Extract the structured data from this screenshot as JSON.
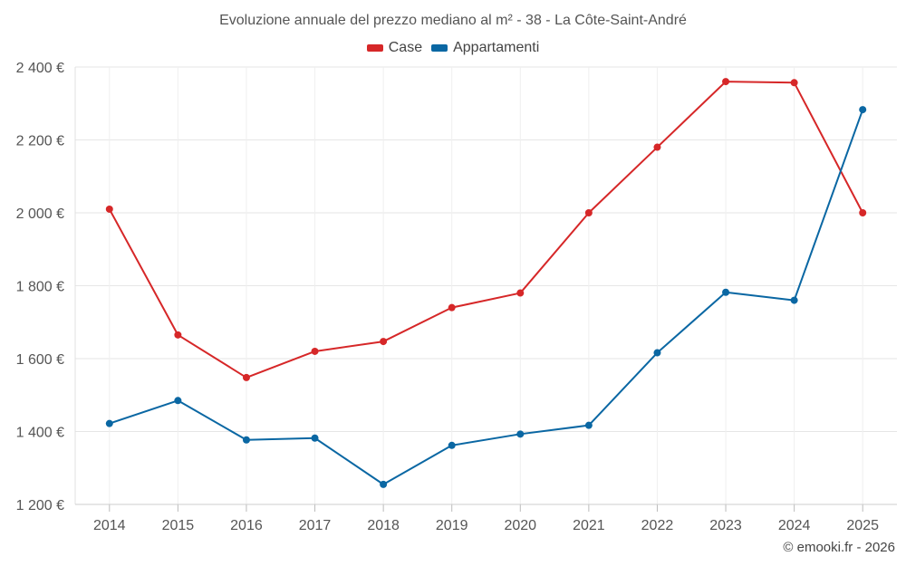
{
  "chart_data": {
    "type": "line",
    "title": "Evoluzione annuale del prezzo mediano al m² - 38 - La Côte-Saint-André",
    "xlabel": "",
    "ylabel": "",
    "categories": [
      "2014",
      "2015",
      "2016",
      "2017",
      "2018",
      "2019",
      "2020",
      "2021",
      "2022",
      "2023",
      "2024",
      "2025"
    ],
    "series": [
      {
        "name": "Case",
        "color": "#d62728",
        "values": [
          2010,
          1665,
          1548,
          1620,
          1647,
          1740,
          1780,
          2000,
          2180,
          2360,
          2357,
          2000
        ]
      },
      {
        "name": "Appartamenti",
        "color": "#0a67a3",
        "values": [
          1422,
          1485,
          1377,
          1382,
          1255,
          1362,
          1393,
          1417,
          1616,
          1782,
          1760,
          2283
        ]
      }
    ],
    "ylim": [
      1200,
      2400
    ],
    "yticks": [
      1200,
      1400,
      1600,
      1800,
      2000,
      2200,
      2400
    ],
    "ytick_labels": [
      "1 200 €",
      "1 400 €",
      "1 600 €",
      "1 800 €",
      "2 000 €",
      "2 200 €",
      "2 400 €"
    ],
    "grid": true,
    "legend_position": "top-center"
  },
  "credit": "© emooki.fr - 2026"
}
